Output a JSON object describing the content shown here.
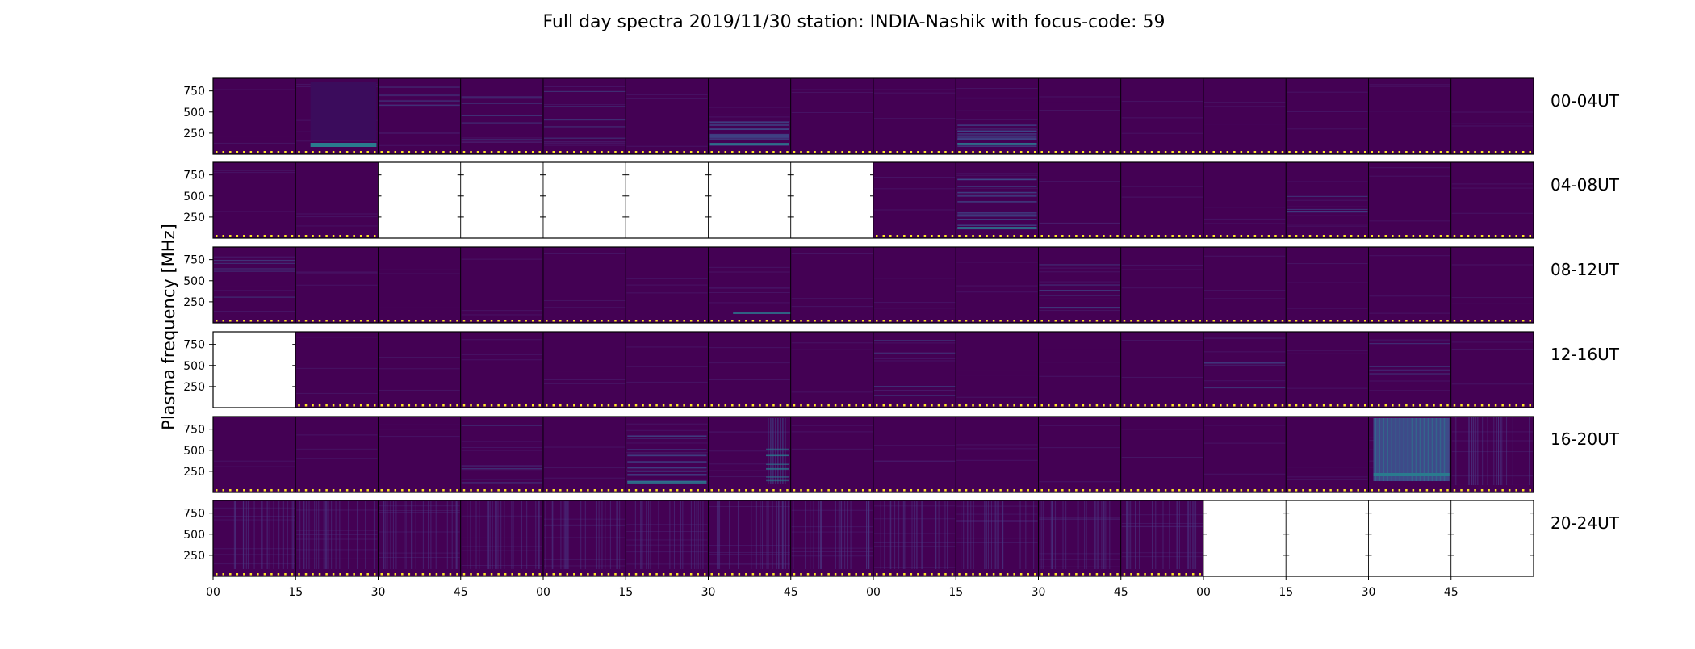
{
  "chart_data": {
    "type": "heatmap",
    "title": "Full day spectra 2019/11/30 station: INDIA-Nashik with focus-code: 59",
    "ylabel": "Plasma frequency [MHz]",
    "xlabel": "",
    "y_ticks": [
      "250",
      "500",
      "750"
    ],
    "y_tick_values": [
      250,
      500,
      750
    ],
    "ylim": [
      0,
      900
    ],
    "x_ticks": [
      "00",
      "15",
      "30",
      "45",
      "00",
      "15",
      "30",
      "45",
      "00",
      "15",
      "30",
      "45",
      "00",
      "15",
      "30",
      "45"
    ],
    "panels_per_row": 16,
    "grid": false,
    "colors": {
      "background": "#440154",
      "dark": "#3b0c5c",
      "bright_band": "#2a7b8e",
      "marker": "#fde725",
      "empty": "#ffffff"
    },
    "rows": [
      {
        "label": "00-04UT",
        "panels": [
          {
            "present": true,
            "feature": "none"
          },
          {
            "present": true,
            "feature": "dark-block-bottom-band"
          },
          {
            "present": true,
            "feature": "faint-lines"
          },
          {
            "present": true,
            "feature": "faint-lines"
          },
          {
            "present": true,
            "feature": "faint-lines"
          },
          {
            "present": true,
            "feature": "none"
          },
          {
            "present": true,
            "feature": "lines-low"
          },
          {
            "present": true,
            "feature": "none"
          },
          {
            "present": true,
            "feature": "none"
          },
          {
            "present": true,
            "feature": "lines-low"
          },
          {
            "present": true,
            "feature": "none"
          },
          {
            "present": true,
            "feature": "none"
          },
          {
            "present": true,
            "feature": "none"
          },
          {
            "present": true,
            "feature": "none"
          },
          {
            "present": true,
            "feature": "none"
          },
          {
            "present": true,
            "feature": "none"
          }
        ]
      },
      {
        "label": "04-08UT",
        "panels": [
          {
            "present": true,
            "feature": "none"
          },
          {
            "present": true,
            "feature": "none"
          },
          {
            "present": false,
            "feature": "none"
          },
          {
            "present": false,
            "feature": "none"
          },
          {
            "present": false,
            "feature": "none"
          },
          {
            "present": false,
            "feature": "none"
          },
          {
            "present": false,
            "feature": "none"
          },
          {
            "present": false,
            "feature": "none"
          },
          {
            "present": true,
            "feature": "none"
          },
          {
            "present": true,
            "feature": "lines-mid"
          },
          {
            "present": true,
            "feature": "none"
          },
          {
            "present": true,
            "feature": "none"
          },
          {
            "present": true,
            "feature": "none"
          },
          {
            "present": true,
            "feature": "faint-lines"
          },
          {
            "present": true,
            "feature": "none"
          },
          {
            "present": true,
            "feature": "none"
          }
        ]
      },
      {
        "label": "08-12UT",
        "panels": [
          {
            "present": true,
            "feature": "faint-lines"
          },
          {
            "present": true,
            "feature": "none"
          },
          {
            "present": true,
            "feature": "none"
          },
          {
            "present": true,
            "feature": "none"
          },
          {
            "present": true,
            "feature": "none"
          },
          {
            "present": true,
            "feature": "none"
          },
          {
            "present": true,
            "feature": "bottom-band"
          },
          {
            "present": true,
            "feature": "none"
          },
          {
            "present": true,
            "feature": "none"
          },
          {
            "present": true,
            "feature": "none"
          },
          {
            "present": true,
            "feature": "faint-lines"
          },
          {
            "present": true,
            "feature": "none"
          },
          {
            "present": true,
            "feature": "none"
          },
          {
            "present": true,
            "feature": "none"
          },
          {
            "present": true,
            "feature": "none"
          },
          {
            "present": true,
            "feature": "none"
          }
        ]
      },
      {
        "label": "12-16UT",
        "panels": [
          {
            "present": false,
            "feature": "none"
          },
          {
            "present": true,
            "feature": "none"
          },
          {
            "present": true,
            "feature": "none"
          },
          {
            "present": true,
            "feature": "none"
          },
          {
            "present": true,
            "feature": "none"
          },
          {
            "present": true,
            "feature": "none"
          },
          {
            "present": true,
            "feature": "none"
          },
          {
            "present": true,
            "feature": "none"
          },
          {
            "present": true,
            "feature": "faint-lines"
          },
          {
            "present": true,
            "feature": "none"
          },
          {
            "present": true,
            "feature": "none"
          },
          {
            "present": true,
            "feature": "none"
          },
          {
            "present": true,
            "feature": "faint-lines"
          },
          {
            "present": true,
            "feature": "none"
          },
          {
            "present": true,
            "feature": "faint-lines"
          },
          {
            "present": true,
            "feature": "none"
          }
        ]
      },
      {
        "label": "16-20UT",
        "panels": [
          {
            "present": true,
            "feature": "none"
          },
          {
            "present": true,
            "feature": "none"
          },
          {
            "present": true,
            "feature": "none"
          },
          {
            "present": true,
            "feature": "faint-lines"
          },
          {
            "present": true,
            "feature": "none"
          },
          {
            "present": true,
            "feature": "lines-mid"
          },
          {
            "present": true,
            "feature": "right-streaks"
          },
          {
            "present": true,
            "feature": "none"
          },
          {
            "present": true,
            "feature": "none"
          },
          {
            "present": true,
            "feature": "none"
          },
          {
            "present": true,
            "feature": "none"
          },
          {
            "present": true,
            "feature": "none"
          },
          {
            "present": true,
            "feature": "none"
          },
          {
            "present": true,
            "feature": "none"
          },
          {
            "present": true,
            "feature": "bright-block"
          },
          {
            "present": true,
            "feature": "vertical-streaks"
          }
        ]
      },
      {
        "label": "20-24UT",
        "panels": [
          {
            "present": true,
            "feature": "vertical-streaks"
          },
          {
            "present": true,
            "feature": "vertical-streaks"
          },
          {
            "present": true,
            "feature": "vertical-streaks"
          },
          {
            "present": true,
            "feature": "vertical-streaks"
          },
          {
            "present": true,
            "feature": "vertical-streaks"
          },
          {
            "present": true,
            "feature": "vertical-streaks"
          },
          {
            "present": true,
            "feature": "vertical-streaks"
          },
          {
            "present": true,
            "feature": "vertical-streaks"
          },
          {
            "present": true,
            "feature": "vertical-streaks"
          },
          {
            "present": true,
            "feature": "vertical-streaks"
          },
          {
            "present": true,
            "feature": "vertical-streaks"
          },
          {
            "present": true,
            "feature": "vertical-streaks"
          },
          {
            "present": false,
            "feature": "none"
          },
          {
            "present": false,
            "feature": "none"
          },
          {
            "present": false,
            "feature": "none"
          },
          {
            "present": false,
            "feature": "none"
          }
        ]
      }
    ]
  }
}
